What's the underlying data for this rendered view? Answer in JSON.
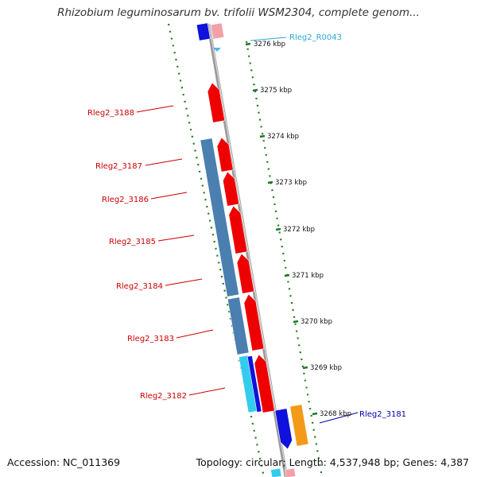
{
  "title": "Rhizobium leguminosarum bv. trifolii WSM2304, complete genom...",
  "footer": {
    "accession": "Accession: NC_011369",
    "summary": "Topology: circular; Length: 4,537,948 bp; Genes: 4,387"
  },
  "gene_labels": [
    {
      "text": "Rleg2_R0043",
      "color": "#29a9d8"
    },
    {
      "text": "Rleg2_3188",
      "color": "#cc0000"
    },
    {
      "text": "Rleg2_3187",
      "color": "#cc0000"
    },
    {
      "text": "Rleg2_3186",
      "color": "#cc0000"
    },
    {
      "text": "Rleg2_3185",
      "color": "#cc0000"
    },
    {
      "text": "Rleg2_3184",
      "color": "#cc0000"
    },
    {
      "text": "Rleg2_3183",
      "color": "#cc0000"
    },
    {
      "text": "Rleg2_3182",
      "color": "#cc0000"
    },
    {
      "text": "Rleg2_3181",
      "color": "#0000aa"
    }
  ],
  "scale_labels": [
    "3276 kbp",
    "3275 kbp",
    "3274 kbp",
    "3273 kbp",
    "3272 kbp",
    "3271 kbp",
    "3270 kbp",
    "3269 kbp",
    "3268 kbp"
  ],
  "colors": {
    "forward_gene": "#ee0000",
    "reverse_gene": "#1111dd",
    "cog": "#4a7fb0",
    "trna": "#33ccee",
    "orange_gene": "#f39a1a",
    "backbone": "#9a9a9a",
    "tick": "#1f7a1f"
  }
}
